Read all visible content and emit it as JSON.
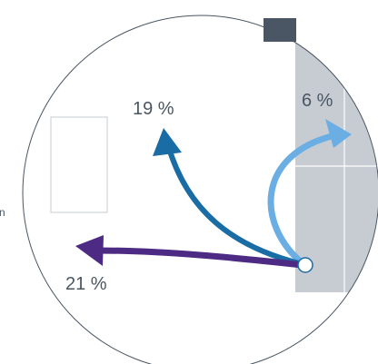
{
  "labels": {
    "up_right_pct": "6 %",
    "up_left_pct": "19 %",
    "left_pct": "21 %",
    "edge_fragment": "n"
  },
  "colors": {
    "arrow_up_right": "#6aaee3",
    "arrow_up_left": "#1a6ca4",
    "arrow_left": "#4d2a83",
    "panel_fill": "#c7ccd3",
    "header_block": "#4a5663",
    "circle_stroke": "#4a5663"
  },
  "icons": {
    "origin_marker": "hollow-circle-icon"
  }
}
